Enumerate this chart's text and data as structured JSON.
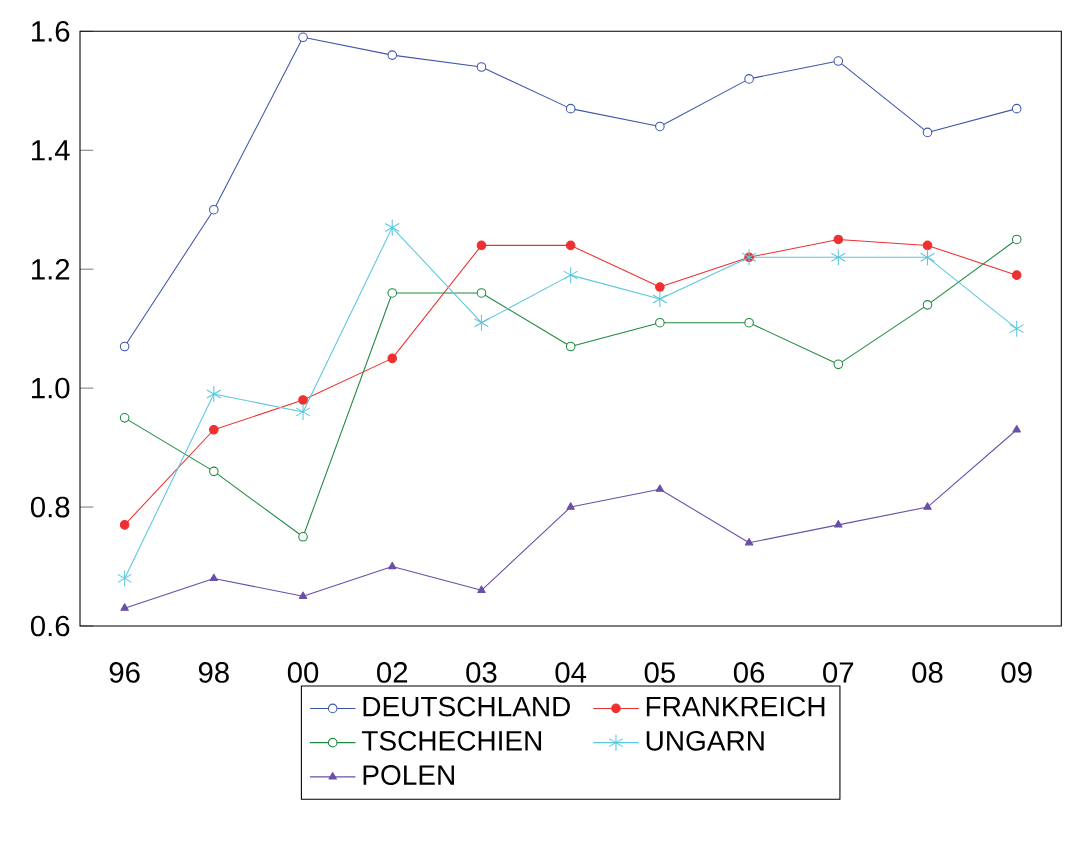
{
  "chart_data": {
    "type": "line",
    "categories": [
      "96",
      "98",
      "00",
      "02",
      "03",
      "04",
      "05",
      "06",
      "07",
      "08",
      "09"
    ],
    "ylim": [
      0.6,
      1.6
    ],
    "yticks": [
      0.6,
      0.8,
      {
        "value": 1.0,
        "label": "1.0"
      },
      1.2,
      1.4,
      1.6
    ],
    "legend": "bottom",
    "grid": false,
    "series": [
      {
        "name": "DEUTSCHLAND",
        "color": "#3f57a8",
        "marker": "circle",
        "values": [
          1.07,
          1.3,
          1.59,
          1.56,
          1.54,
          1.47,
          1.44,
          1.52,
          1.55,
          1.43,
          1.47
        ]
      },
      {
        "name": "FRANKREICH",
        "color": "#ee3030",
        "marker": "circle",
        "values": [
          0.77,
          0.93,
          0.98,
          1.05,
          1.24,
          1.24,
          1.17,
          1.22,
          1.25,
          1.24,
          1.19
        ]
      },
      {
        "name": "TSCHECHIEN",
        "color": "#1f8a3f",
        "marker": "circle",
        "values": [
          0.95,
          0.86,
          0.75,
          1.16,
          1.16,
          1.07,
          1.11,
          1.11,
          1.04,
          1.14,
          1.25
        ]
      },
      {
        "name": "UNGARN",
        "color": "#5bc8dc",
        "marker": "cross",
        "values": [
          0.68,
          0.99,
          0.96,
          1.27,
          1.11,
          1.19,
          1.15,
          1.22,
          1.22,
          1.22,
          1.1
        ]
      },
      {
        "name": "POLEN",
        "color": "#6a4fa8",
        "marker": "triangle",
        "values": [
          0.63,
          0.68,
          0.65,
          0.7,
          0.66,
          0.8,
          0.83,
          0.74,
          0.77,
          0.8,
          0.93
        ]
      }
    ]
  }
}
